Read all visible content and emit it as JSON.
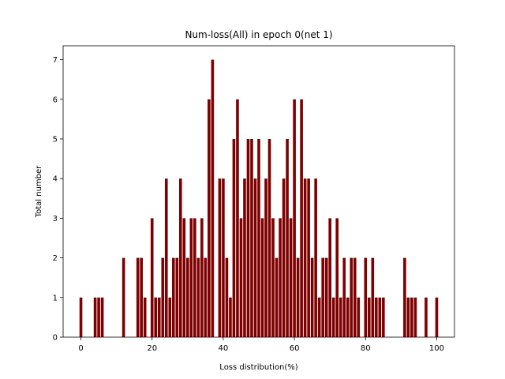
{
  "chart_data": {
    "type": "bar",
    "title": "Num-loss(All) in epoch 0(net 1)",
    "xlabel": "Loss distribution(%)",
    "ylabel": "Total number",
    "xlim": [
      -5,
      105
    ],
    "ylim": [
      0,
      7.35
    ],
    "xticks": [
      0,
      20,
      40,
      60,
      80,
      100
    ],
    "yticks": [
      0,
      1,
      2,
      3,
      4,
      5,
      6,
      7
    ],
    "grid": false,
    "bar_color": "#7f0000",
    "x": [
      0,
      4,
      5,
      6,
      12,
      16,
      17,
      18,
      20,
      21,
      22,
      23,
      24,
      25,
      26,
      27,
      28,
      29,
      30,
      31,
      32,
      33,
      34,
      35,
      36,
      37,
      39,
      40,
      41,
      42,
      43,
      44,
      45,
      46,
      47,
      48,
      49,
      50,
      51,
      52,
      53,
      54,
      55,
      56,
      57,
      58,
      59,
      60,
      61,
      62,
      63,
      64,
      65,
      66,
      67,
      68,
      69,
      70,
      71,
      72,
      73,
      74,
      75,
      76,
      77,
      78,
      80,
      81,
      82,
      83,
      84,
      85,
      91,
      92,
      93,
      94,
      97,
      100
    ],
    "values": [
      1,
      1,
      1,
      1,
      2,
      2,
      2,
      1,
      3,
      1,
      1,
      2,
      4,
      1,
      2,
      2,
      4,
      3,
      2,
      3,
      3,
      2,
      3,
      2,
      6,
      7,
      4,
      4,
      2,
      1,
      5,
      6,
      3,
      4,
      5,
      5,
      4,
      5,
      3,
      4,
      5,
      3,
      2,
      3,
      4,
      5,
      3,
      6,
      2,
      6,
      4,
      4,
      2,
      4,
      1,
      2,
      2,
      3,
      1,
      3,
      1,
      2,
      1,
      2,
      2,
      1,
      2,
      1,
      2,
      1,
      1,
      1,
      2,
      1,
      1,
      1,
      1,
      1
    ]
  }
}
